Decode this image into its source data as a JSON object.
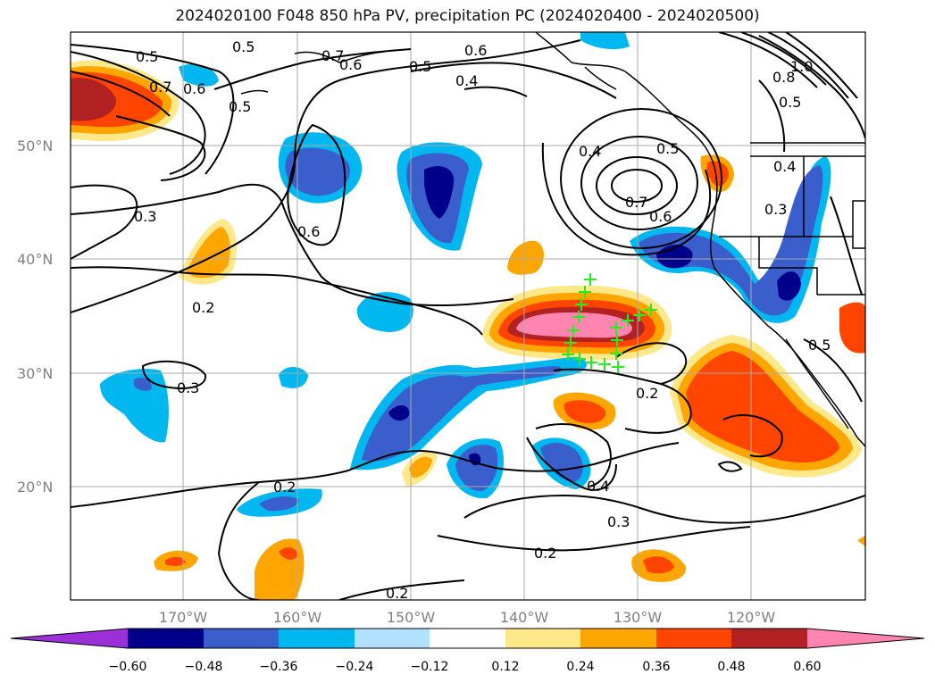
{
  "title": "2024020100 F048 850 hPa PV, precipitation PC (2024020400 - 2024020500)",
  "lat_labels": [
    "50°N",
    "40°N",
    "30°N",
    "20°N"
  ],
  "lon_labels": [
    "170°W",
    "160°W",
    "150°W",
    "140°W",
    "130°W",
    "120°W"
  ],
  "colorbar": {
    "ticks": [
      "−0.60",
      "−0.48",
      "−0.36",
      "−0.24",
      "−0.12",
      "0.12",
      "0.24",
      "0.36",
      "0.48",
      "0.60"
    ],
    "colors": [
      "#9b30d9",
      "#00008b",
      "#3a5fcd",
      "#00b7f0",
      "#b0e2ff",
      "#ffffff",
      "#ffe88a",
      "#ffa500",
      "#ff4500",
      "#b22222",
      "#ff85b0"
    ]
  },
  "contour_labels": [
    "0.5",
    "0.6",
    "0.5",
    "0.4",
    "0.6",
    "0.7",
    "0.5",
    "0.7",
    "0.6",
    "0.5",
    "0.3",
    "0.6",
    "0.4",
    "0.5",
    "0.7",
    "0.6",
    "0.3",
    "0.2",
    "0.3",
    "0.2",
    "0.2",
    "0.4",
    "0.3",
    "0.2",
    "0.2",
    "1.0",
    "0.8",
    "0.5",
    "0.4",
    "0.5"
  ],
  "marker_color": "#22ee22"
}
